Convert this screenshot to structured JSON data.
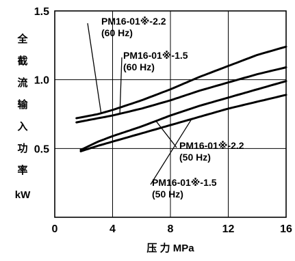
{
  "chart_data": {
    "type": "line",
    "x_ticks": [
      0,
      4,
      8,
      12,
      16
    ],
    "y_ticks": [
      0,
      0.5,
      1.0,
      1.5
    ],
    "y_tick_labels": [
      "0",
      "0.5",
      "1.0",
      "1.5"
    ],
    "xlim": [
      0,
      16
    ],
    "ylim": [
      0,
      1.5
    ],
    "grid": true,
    "ylabel_chars": [
      "全",
      "截",
      "流",
      "输",
      "入",
      "功",
      "率"
    ],
    "ylabel_unit": "kW",
    "xlabel": "压 力 MPa",
    "series": [
      {
        "name": "PM16-01※-2.2\n(60 Hz)",
        "x": [
          1.5,
          3,
          4,
          6,
          8,
          10,
          12,
          14,
          16
        ],
        "y": [
          0.72,
          0.75,
          0.78,
          0.85,
          0.93,
          1.02,
          1.1,
          1.18,
          1.24
        ]
      },
      {
        "name": "PM16-01※-1.5\n(60 Hz)",
        "x": [
          1.5,
          3,
          4,
          6,
          8,
          10,
          12,
          14,
          16
        ],
        "y": [
          0.69,
          0.72,
          0.74,
          0.79,
          0.85,
          0.92,
          0.98,
          1.04,
          1.09
        ]
      },
      {
        "name": "PM16-01※-2.2\n(50 Hz)",
        "x": [
          1.8,
          3,
          4,
          6,
          8,
          10,
          12,
          14,
          16
        ],
        "y": [
          0.49,
          0.55,
          0.59,
          0.66,
          0.74,
          0.81,
          0.87,
          0.93,
          0.99
        ]
      },
      {
        "name": "PM16-01※-1.5\n(50 Hz)",
        "x": [
          1.8,
          3,
          4,
          6,
          8,
          10,
          12,
          14,
          16
        ],
        "y": [
          0.48,
          0.52,
          0.55,
          0.61,
          0.67,
          0.73,
          0.79,
          0.84,
          0.89
        ]
      }
    ],
    "annotations": [
      {
        "series": 0,
        "line1": "PM16-01※-2.2",
        "line2": "(60 Hz)",
        "point": [
          3.2,
          0.76
        ]
      },
      {
        "series": 1,
        "line1": "PM16-01※-1.5",
        "line2": "(60 Hz)",
        "point": [
          4.5,
          0.75
        ]
      },
      {
        "series": 2,
        "line1": "PM16-01※-2.2",
        "line2": "(50 Hz)",
        "point": [
          7.0,
          0.7
        ]
      },
      {
        "series": 3,
        "line1": "PM16-01※-1.5",
        "line2": "(50 Hz)",
        "point": [
          9.5,
          0.72
        ]
      }
    ]
  }
}
